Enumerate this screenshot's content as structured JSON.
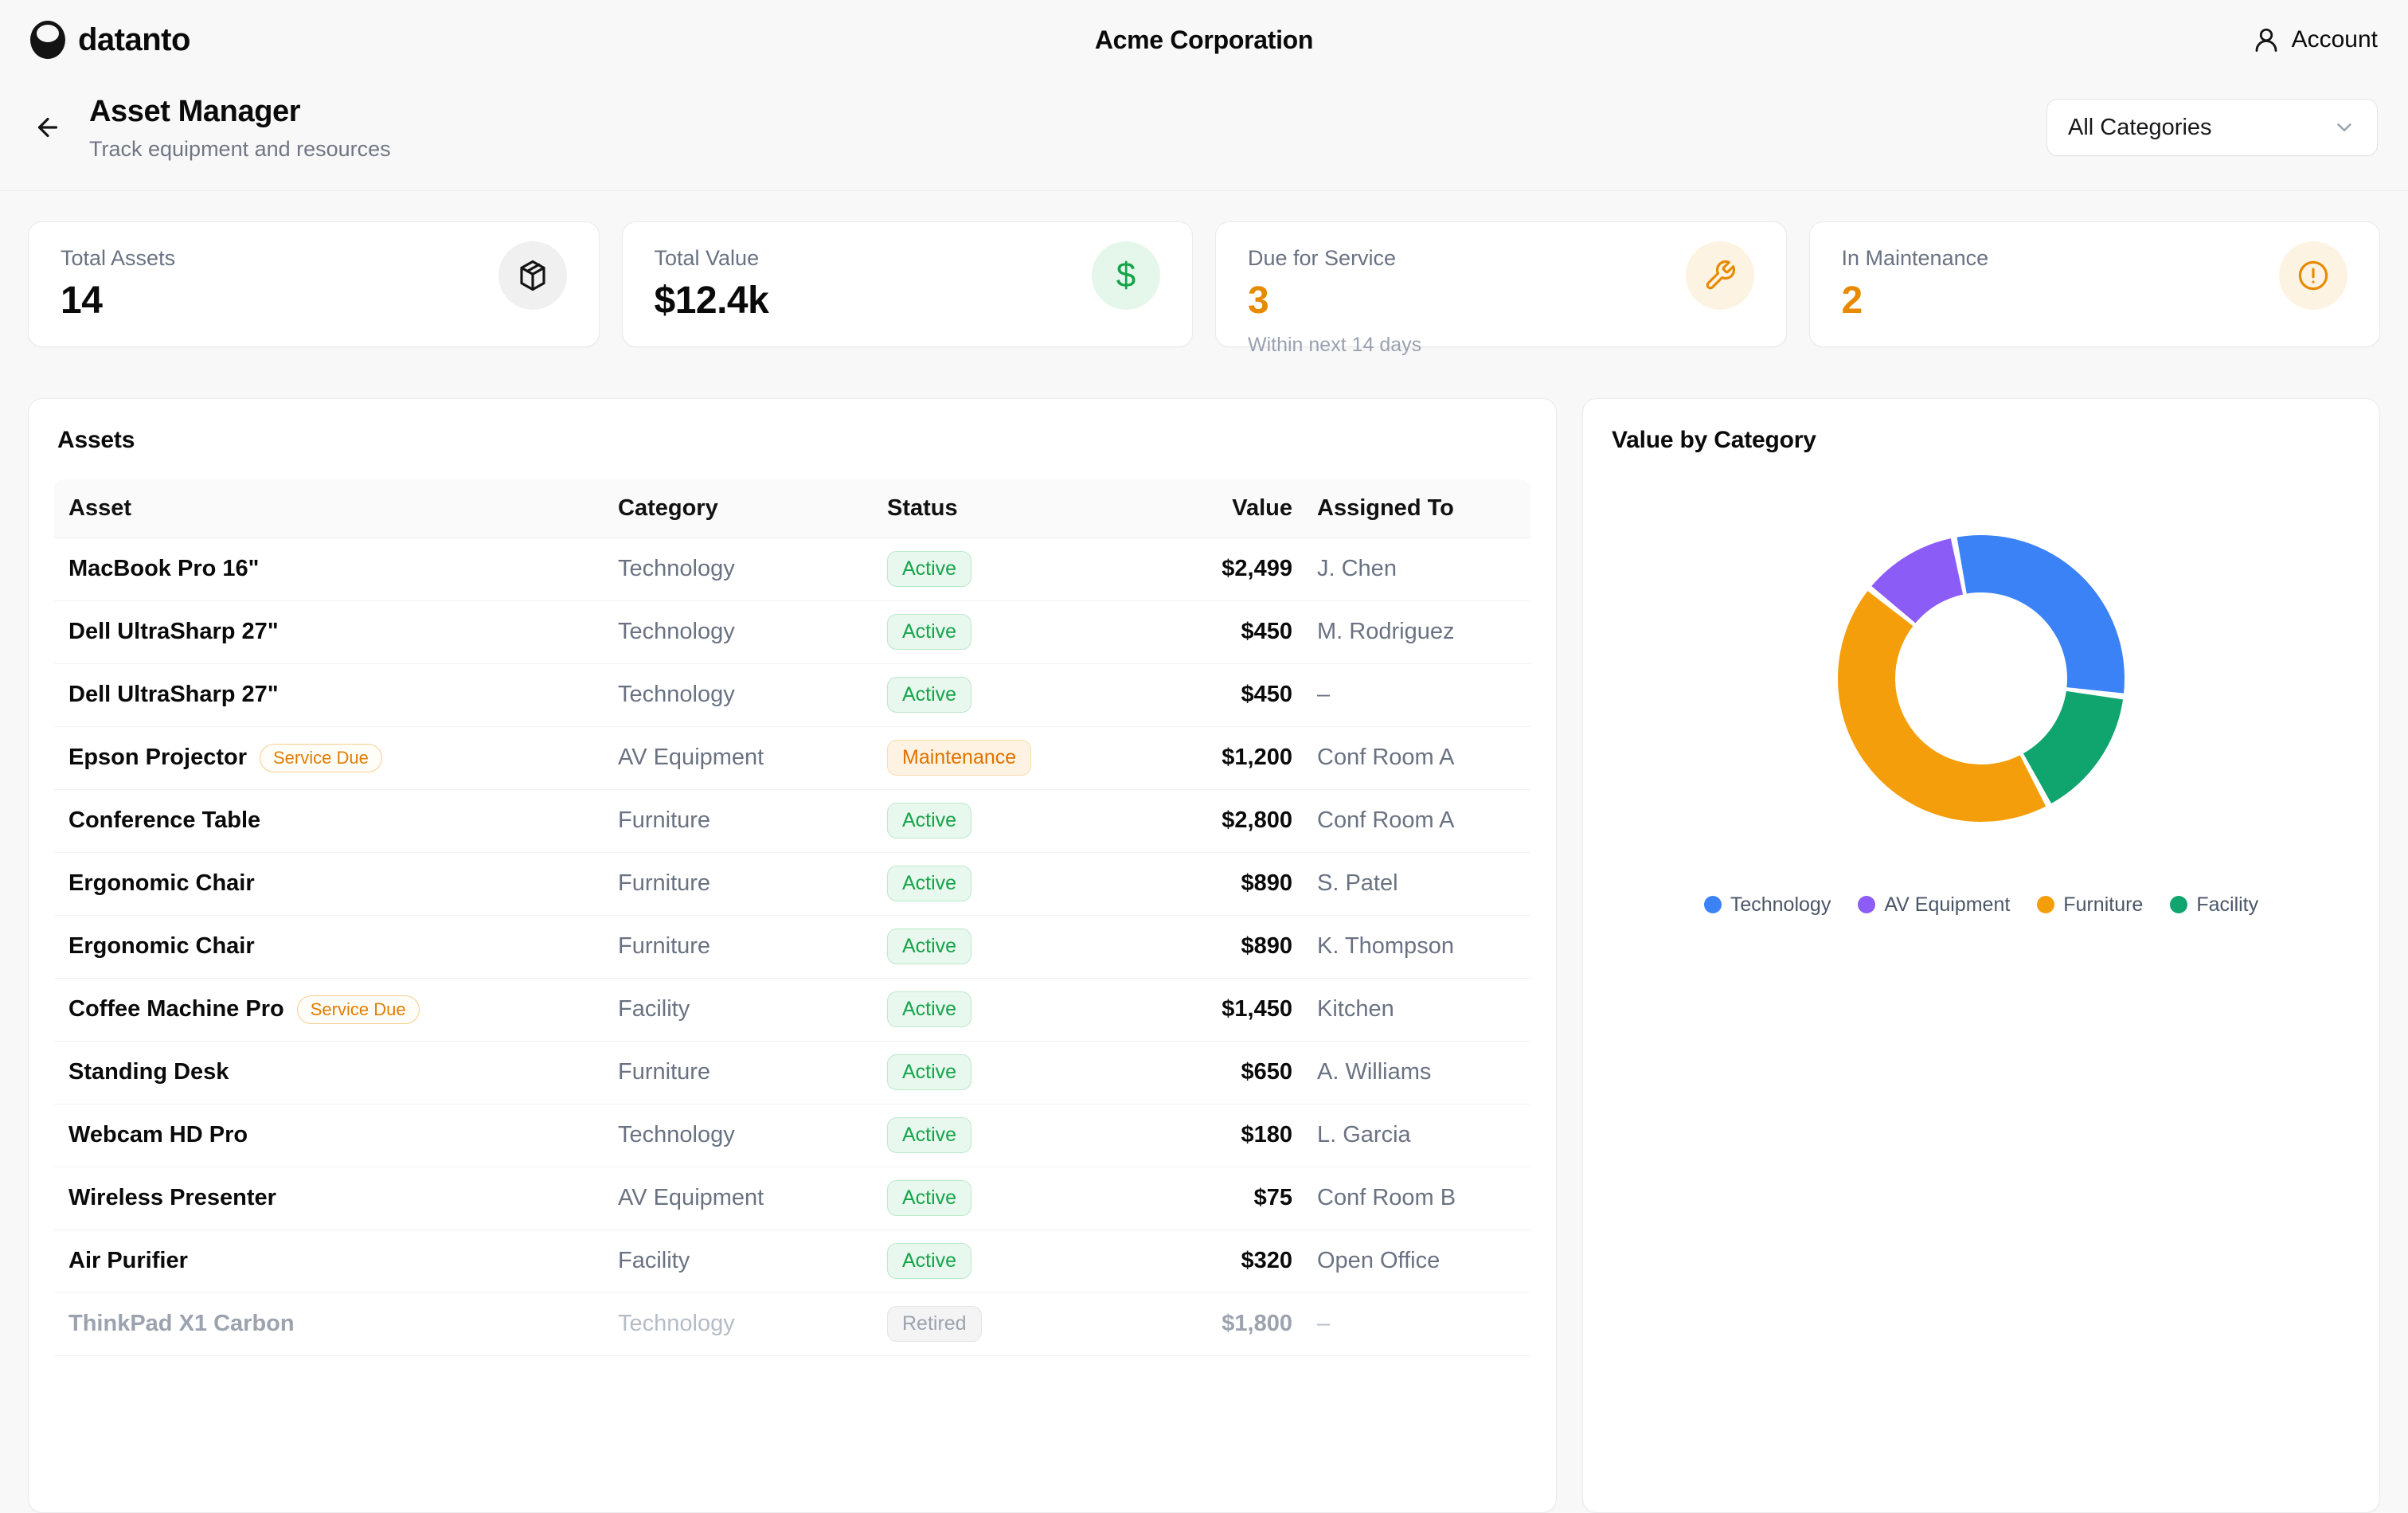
{
  "topbar": {
    "brand": "datanto",
    "company": "Acme Corporation",
    "account_label": "Account",
    "account_icon": "user-icon",
    "brand_icon": "datanto-logo-icon"
  },
  "header": {
    "title": "Asset Manager",
    "subtitle": "Track equipment and resources",
    "back_icon": "arrow-left-icon",
    "category_filter": {
      "selected": "All Categories",
      "chevron_icon": "chevron-down-icon"
    }
  },
  "stats": [
    {
      "label": "Total Assets",
      "value": "14",
      "icon": "package-icon",
      "accent": "neutral"
    },
    {
      "label": "Total Value",
      "value": "$12.4k",
      "icon": "dollar-icon",
      "accent": "green"
    },
    {
      "label": "Due for Service",
      "value": "3",
      "caption": "Within next 14 days",
      "icon": "wrench-icon",
      "accent": "orange"
    },
    {
      "label": "In Maintenance",
      "value": "2",
      "icon": "alert-circle-icon",
      "accent": "orange"
    }
  ],
  "assets_panel": {
    "title": "Assets",
    "columns": [
      "Asset",
      "Category",
      "Status",
      "Value",
      "Assigned To"
    ],
    "rows": [
      {
        "name": "MacBook Pro 16\"",
        "category": "Technology",
        "status": "Active",
        "value": "$2,499",
        "assigned": "J. Chen"
      },
      {
        "name": "Dell UltraSharp 27\"",
        "category": "Technology",
        "status": "Active",
        "value": "$450",
        "assigned": "M. Rodriguez"
      },
      {
        "name": "Dell UltraSharp 27\"",
        "category": "Technology",
        "status": "Active",
        "value": "$450",
        "assigned": "–"
      },
      {
        "name": "Epson Projector",
        "service_due": "Service Due",
        "category": "AV Equipment",
        "status": "Maintenance",
        "value": "$1,200",
        "assigned": "Conf Room A"
      },
      {
        "name": "Conference Table",
        "category": "Furniture",
        "status": "Active",
        "value": "$2,800",
        "assigned": "Conf Room A"
      },
      {
        "name": "Ergonomic Chair",
        "category": "Furniture",
        "status": "Active",
        "value": "$890",
        "assigned": "S. Patel"
      },
      {
        "name": "Ergonomic Chair",
        "category": "Furniture",
        "status": "Active",
        "value": "$890",
        "assigned": "K. Thompson"
      },
      {
        "name": "Coffee Machine Pro",
        "service_due": "Service Due",
        "category": "Facility",
        "status": "Active",
        "value": "$1,450",
        "assigned": "Kitchen"
      },
      {
        "name": "Standing Desk",
        "category": "Furniture",
        "status": "Active",
        "value": "$650",
        "assigned": "A. Williams"
      },
      {
        "name": "Webcam HD Pro",
        "category": "Technology",
        "status": "Active",
        "value": "$180",
        "assigned": "L. Garcia"
      },
      {
        "name": "Wireless Presenter",
        "category": "AV Equipment",
        "status": "Active",
        "value": "$75",
        "assigned": "Conf Room B"
      },
      {
        "name": "Air Purifier",
        "category": "Facility",
        "status": "Active",
        "value": "$320",
        "assigned": "Open Office"
      },
      {
        "name": "ThinkPad X1 Carbon",
        "category": "Technology",
        "status": "Retired",
        "value": "$1,800",
        "assigned": "–",
        "muted": true
      }
    ]
  },
  "chart_panel": {
    "title": "Value by Category"
  },
  "chart_data": {
    "type": "donut",
    "title": "Value by Category",
    "categories": [
      "Technology",
      "AV Equipment",
      "Furniture",
      "Facility"
    ],
    "values": [
      3579,
      1275,
      5230,
      1770
    ],
    "colors": [
      "#3B82F6",
      "#8B5CF6",
      "#F59E0B",
      "#10A56F"
    ],
    "legend_position": "bottom",
    "draw_order_clockwise": [
      "Technology",
      "Facility",
      "Furniture",
      "AV Equipment"
    ],
    "start_angle_deg": -11,
    "pad_angle_deg": 2.5,
    "outer_radius_px": 180,
    "inner_radius_ratio": 0.6
  },
  "colors": {
    "accent_orange": "#E88A00",
    "accent_green": "#16A34A",
    "text_secondary": "#6A7282",
    "text_muted": "#9CA3AF",
    "badge_active_bg": "#E8F8EE",
    "badge_maintenance_bg": "#FEF3E2",
    "badge_retired_bg": "#F4F4F5"
  }
}
